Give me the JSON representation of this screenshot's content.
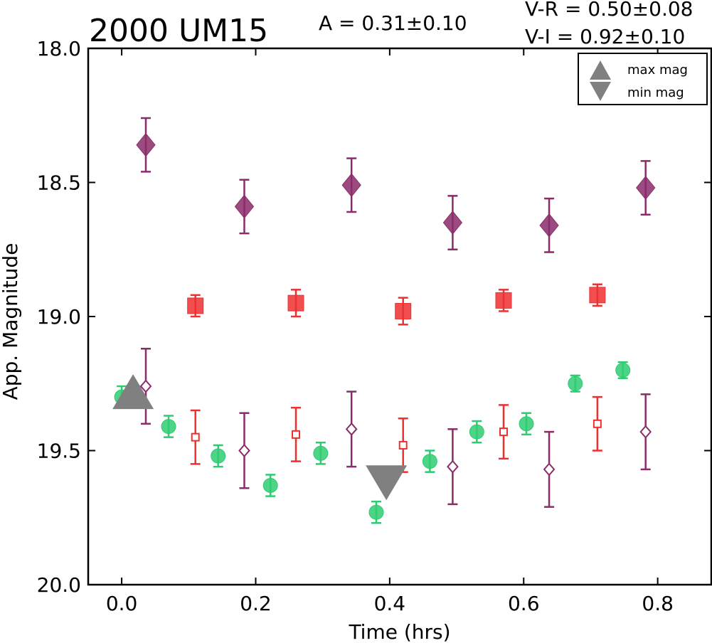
{
  "chart_data": {
    "type": "scatter",
    "title": "2000 UM15",
    "annotations": {
      "amplitude": "A  = 0.31±0.10",
      "v_r": "V-R = 0.50±0.08",
      "v_i": "V-I  = 0.92±0.10"
    },
    "xlabel": "Time (hrs)",
    "ylabel": "App. Magnitude",
    "xlim": [
      -0.05,
      0.88
    ],
    "ylim": [
      20.0,
      18.0
    ],
    "y_inverted": true,
    "xticks": [
      "0.0",
      "0.2",
      "0.4",
      "0.6",
      "0.8"
    ],
    "yticks": [
      "18.0",
      "18.5",
      "19.0",
      "19.5",
      "20.0"
    ],
    "grid": false,
    "legend_position": "top-right",
    "legend": [
      {
        "label": "max mag",
        "marker": "triangle-up"
      },
      {
        "label": "min mag",
        "marker": "triangle-down"
      }
    ],
    "series": [
      {
        "marker": "circle",
        "filled": true,
        "color": "#2ecc71",
        "x": [
          0.0,
          0.07,
          0.144,
          0.222,
          0.297,
          0.38,
          0.46,
          0.53,
          0.604,
          0.677,
          0.748
        ],
        "y": [
          19.3,
          19.41,
          19.52,
          19.63,
          19.51,
          19.73,
          19.54,
          19.43,
          19.4,
          19.25,
          19.2
        ],
        "err": [
          0.04,
          0.04,
          0.04,
          0.04,
          0.04,
          0.04,
          0.04,
          0.04,
          0.04,
          0.03,
          0.03
        ]
      },
      {
        "marker": "square",
        "filled": true,
        "color": "#ee3030",
        "x": [
          0.11,
          0.26,
          0.42,
          0.57,
          0.71
        ],
        "y": [
          18.96,
          18.95,
          18.98,
          18.94,
          18.92
        ],
        "err": [
          0.04,
          0.05,
          0.05,
          0.04,
          0.04
        ]
      },
      {
        "marker": "square",
        "filled": false,
        "color": "#ee3030",
        "x": [
          0.11,
          0.26,
          0.42,
          0.57,
          0.71
        ],
        "y": [
          19.45,
          19.44,
          19.48,
          19.43,
          19.4
        ],
        "err": [
          0.1,
          0.1,
          0.1,
          0.1,
          0.1
        ]
      },
      {
        "marker": "diamond",
        "filled": true,
        "color": "#8b2c6a",
        "x": [
          0.036,
          0.183,
          0.343,
          0.494,
          0.638,
          0.782
        ],
        "y": [
          18.36,
          18.59,
          18.51,
          18.65,
          18.66,
          18.52
        ],
        "err": [
          0.1,
          0.1,
          0.1,
          0.1,
          0.1,
          0.1
        ]
      },
      {
        "marker": "diamond",
        "filled": false,
        "color": "#8b2c6a",
        "x": [
          0.036,
          0.183,
          0.343,
          0.494,
          0.638,
          0.782
        ],
        "y": [
          19.26,
          19.5,
          19.42,
          19.56,
          19.57,
          19.43
        ],
        "err": [
          0.14,
          0.14,
          0.14,
          0.14,
          0.14,
          0.14
        ]
      }
    ],
    "extrema": [
      {
        "label": "max mag",
        "marker": "triangle-up",
        "x": 0.017,
        "y": 19.3
      },
      {
        "label": "min mag",
        "marker": "triangle-down",
        "x": 0.395,
        "y": 19.6
      }
    ]
  }
}
